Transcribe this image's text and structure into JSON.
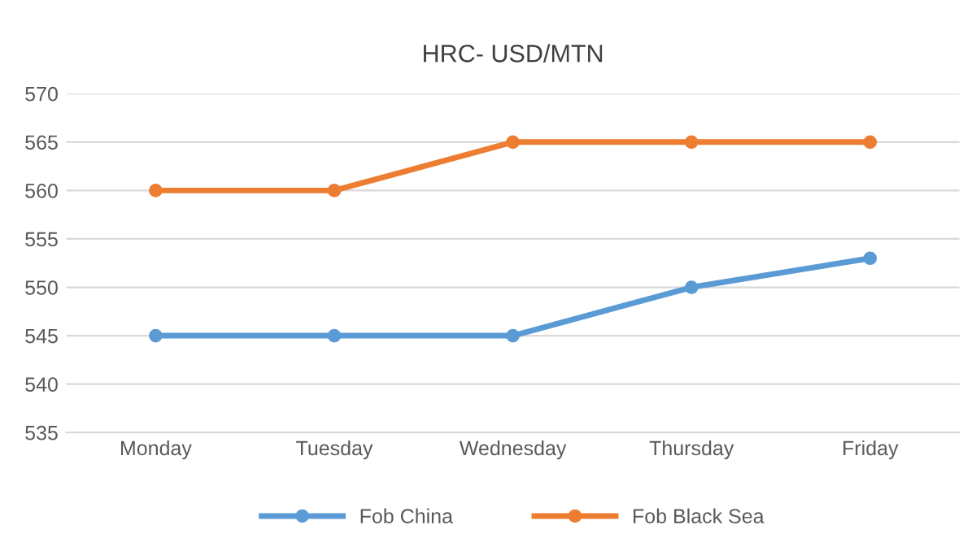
{
  "chart_data": {
    "type": "line",
    "title": "HRC- USD/MTN",
    "categories": [
      "Monday",
      "Tuesday",
      "Wednesday",
      "Thursday",
      "Friday"
    ],
    "series": [
      {
        "name": "Fob China",
        "color": "#5b9bd5",
        "values": [
          545,
          545,
          545,
          550,
          553
        ]
      },
      {
        "name": "Fob Black Sea",
        "color": "#ed7d31",
        "values": [
          560,
          560,
          565,
          565,
          565
        ]
      }
    ],
    "ylim": [
      535,
      570
    ],
    "yticks": [
      535,
      540,
      545,
      550,
      555,
      560,
      565,
      570
    ],
    "grid": "y",
    "legend": "bottom",
    "marker": "circle",
    "line_style": "solid"
  }
}
